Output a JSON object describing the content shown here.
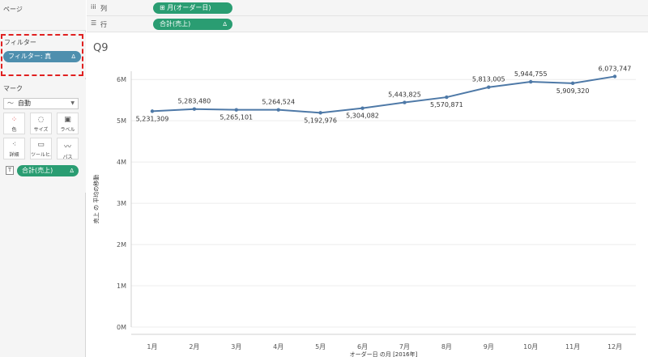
{
  "left_panel": {
    "pages_title": "ページ",
    "filters_title": "フィルター",
    "filter_pill": "フィルター: 真",
    "marks_title": "マーク",
    "mark_type": "自動",
    "mark_buttons": [
      {
        "label": "色",
        "icon": "color-dots-icon"
      },
      {
        "label": "サイズ",
        "icon": "size-icon"
      },
      {
        "label": "ラベル",
        "icon": "label-icon"
      },
      {
        "label": "詳細",
        "icon": "detail-icon"
      },
      {
        "label": "ツールヒ...",
        "icon": "tooltip-icon"
      },
      {
        "label": "パス",
        "icon": "path-icon"
      }
    ],
    "sum_pill": "合計(売上)"
  },
  "shelves": {
    "columns_label": "列",
    "columns_pill": "⊞ 月(オーダー日)",
    "rows_label": "行",
    "rows_pill": "合計(売上)",
    "delta": "Δ"
  },
  "sheet_title": "Q9",
  "chart_data": {
    "type": "line",
    "categories": [
      "1月",
      "2月",
      "3月",
      "4月",
      "5月",
      "6月",
      "7月",
      "8月",
      "9月",
      "10月",
      "11月",
      "12月"
    ],
    "values": [
      5231309,
      5283480,
      5265101,
      5264524,
      5192976,
      5304082,
      5443825,
      5570871,
      5813005,
      5944755,
      5909320,
      6073747
    ],
    "labels": [
      "5,231,309",
      "5,283,480",
      "5,265,101",
      "5,264,524",
      "5,192,976",
      "5,304,082",
      "5,443,825",
      "5,570,871",
      "5,813,005",
      "5,944,755",
      "5,909,320",
      "6,073,747"
    ],
    "label_positions": [
      "below",
      "above",
      "below",
      "above",
      "below",
      "below",
      "above",
      "below",
      "above",
      "above",
      "below",
      "above"
    ],
    "yticks": [
      0,
      1000000,
      2000000,
      3000000,
      4000000,
      5000000,
      6000000
    ],
    "ytick_labels": [
      "0M",
      "1M",
      "2M",
      "3M",
      "4M",
      "5M",
      "6M"
    ],
    "ylim": [
      0,
      6200000
    ],
    "xlabel": "オーダー日 の月 [2016年]",
    "ylabel": "売上 の 平均の移動",
    "line_color": "#4e79a7",
    "grid": true
  }
}
